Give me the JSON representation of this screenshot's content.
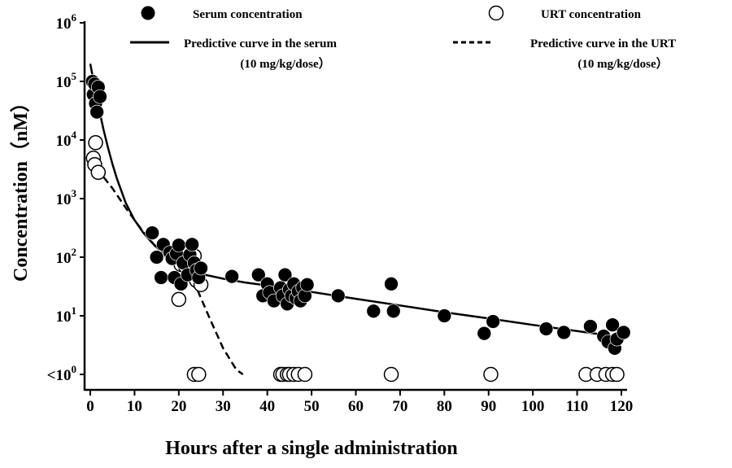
{
  "chart_data": {
    "type": "scatter",
    "xlabel": "Hours after a single administration",
    "ylabel": "Concentration（nM）",
    "xlim": [
      0,
      120
    ],
    "x_ticks": [
      0,
      10,
      20,
      30,
      40,
      50,
      60,
      70,
      80,
      90,
      100,
      110,
      120
    ],
    "y_scale": "log",
    "ylim_log10": [
      0,
      6
    ],
    "y_ticks": [
      {
        "base": "<10",
        "exp": "0"
      },
      {
        "base": "10",
        "exp": "1"
      },
      {
        "base": "10",
        "exp": "2"
      },
      {
        "base": "10",
        "exp": "3"
      },
      {
        "base": "10",
        "exp": "4"
      },
      {
        "base": "10",
        "exp": "5"
      },
      {
        "base": "10",
        "exp": "6"
      }
    ],
    "grid": false,
    "legend": {
      "placement": "top",
      "entries": [
        {
          "marker": "filled-circle",
          "label": "Serum concentration"
        },
        {
          "marker": "open-circle",
          "label": "URT concentration"
        },
        {
          "marker": "solid-line",
          "label": "Predictive curve in the serum",
          "sub": "(10 mg/kg/dose）"
        },
        {
          "marker": "dashed-line",
          "label": "Predictive curve in the URT",
          "sub": "(10 mg/kg/dose）"
        }
      ]
    },
    "series": [
      {
        "name": "Serum concentration",
        "kind": "points",
        "style": "filled",
        "points": [
          [
            0.5,
            100000
          ],
          [
            0.7,
            60000
          ],
          [
            1,
            90000
          ],
          [
            1.2,
            42000
          ],
          [
            1.5,
            30000
          ],
          [
            1.8,
            80000
          ],
          [
            2.2,
            55000
          ],
          [
            14,
            260
          ],
          [
            15,
            100
          ],
          [
            16,
            45
          ],
          [
            16.5,
            165
          ],
          [
            18,
            120
          ],
          [
            18.5,
            95
          ],
          [
            19,
            45
          ],
          [
            19.5,
            115
          ],
          [
            20,
            160
          ],
          [
            20.5,
            35
          ],
          [
            21,
            80
          ],
          [
            22,
            50
          ],
          [
            22.5,
            110
          ],
          [
            23,
            165
          ],
          [
            23.5,
            80
          ],
          [
            24,
            60
          ],
          [
            24.5,
            45
          ],
          [
            25,
            65
          ],
          [
            32,
            47
          ],
          [
            38,
            50
          ],
          [
            39,
            22
          ],
          [
            40,
            35
          ],
          [
            40.5,
            25
          ],
          [
            41.5,
            18
          ],
          [
            43,
            30
          ],
          [
            43.5,
            22
          ],
          [
            44,
            50
          ],
          [
            44.5,
            16
          ],
          [
            45,
            28
          ],
          [
            45.5,
            22
          ],
          [
            46,
            35
          ],
          [
            46.5,
            20
          ],
          [
            47,
            26
          ],
          [
            47.5,
            18
          ],
          [
            48,
            30
          ],
          [
            48.5,
            22
          ],
          [
            49,
            34
          ],
          [
            56,
            22
          ],
          [
            64,
            12
          ],
          [
            68,
            35
          ],
          [
            68.5,
            12
          ],
          [
            80,
            10
          ],
          [
            89,
            5
          ],
          [
            91,
            8
          ],
          [
            103,
            6
          ],
          [
            107,
            5.2
          ],
          [
            113,
            6.6
          ],
          [
            116,
            4.5
          ],
          [
            117,
            3.6
          ],
          [
            118,
            7
          ],
          [
            118.5,
            2.8
          ],
          [
            119,
            4
          ],
          [
            120.5,
            5.2
          ]
        ]
      },
      {
        "name": "URT concentration",
        "kind": "points",
        "style": "open",
        "points": [
          [
            0.7,
            4900
          ],
          [
            1,
            3800
          ],
          [
            1.2,
            9000
          ],
          [
            1.8,
            2800
          ],
          [
            20,
            19
          ],
          [
            20.5,
            75
          ],
          [
            21.5,
            70
          ],
          [
            23.5,
            105
          ],
          [
            24,
            40
          ],
          [
            25,
            34
          ]
        ],
        "below_lod_hours": [
          23.5,
          24.5,
          43,
          43.5,
          44.5,
          45,
          46,
          47,
          48.5,
          68,
          90.5,
          112,
          114.5,
          116.5,
          118,
          119
        ]
      },
      {
        "name": "Predictive curve in the serum",
        "kind": "line",
        "style": "solid",
        "points": [
          [
            0,
            200000
          ],
          [
            1,
            80000
          ],
          [
            2,
            33000
          ],
          [
            3,
            15000
          ],
          [
            4,
            7400
          ],
          [
            5,
            3900
          ],
          [
            6,
            2200
          ],
          [
            8,
            850
          ],
          [
            10,
            430
          ],
          [
            12,
            260
          ],
          [
            14,
            175
          ],
          [
            16,
            125
          ],
          [
            18,
            95
          ],
          [
            20,
            76
          ],
          [
            22,
            64
          ],
          [
            24,
            56
          ],
          [
            26,
            50
          ],
          [
            30,
            43
          ],
          [
            35,
            37
          ],
          [
            40,
            33
          ],
          [
            45,
            29
          ],
          [
            50,
            25.5
          ],
          [
            60,
            19.5
          ],
          [
            70,
            15
          ],
          [
            80,
            11.5
          ],
          [
            90,
            9
          ],
          [
            100,
            7
          ],
          [
            110,
            5.5
          ],
          [
            120,
            4.3
          ]
        ]
      },
      {
        "name": "Predictive curve in the URT",
        "kind": "line",
        "style": "dashed",
        "points": [
          [
            0,
            4800
          ],
          [
            2,
            2900
          ],
          [
            5,
            1500
          ],
          [
            8,
            700
          ],
          [
            10,
            430
          ],
          [
            12,
            270
          ],
          [
            15,
            145
          ],
          [
            18,
            95
          ],
          [
            21,
            63
          ],
          [
            24,
            30
          ],
          [
            27,
            9
          ],
          [
            30,
            2.8
          ],
          [
            33,
            1.2
          ],
          [
            34.5,
            1
          ]
        ]
      }
    ]
  }
}
